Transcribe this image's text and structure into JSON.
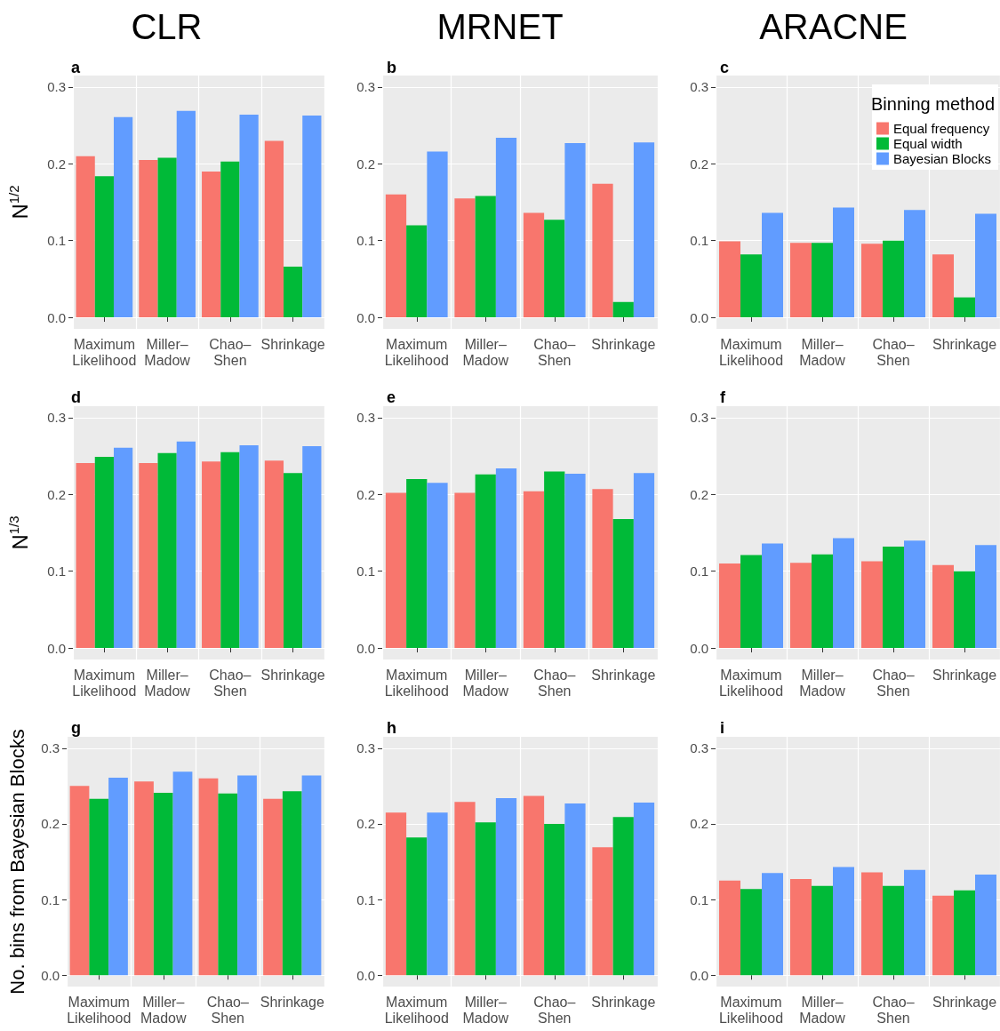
{
  "chart_data": [
    {
      "type": "bar",
      "title": "CLR",
      "subtitle": "a",
      "ylabel": "N$^{1/2}$",
      "categories": [
        "Maximum\nLikelihood",
        "Miller–\nMadow",
        "Chao–\nShen",
        "Shrinkage"
      ],
      "ylim": [
        -0.015,
        0.315
      ],
      "yticks": [
        {
          "value": 0,
          "label": "0.0"
        },
        {
          "value": 0.1,
          "label": "0.1"
        },
        {
          "value": 0.2,
          "label": "0.2"
        },
        {
          "value": 0.3,
          "label": "0.3"
        }
      ],
      "grid": true,
      "legend": false,
      "series": [
        {
          "color": "#f8766d",
          "values": [
            0.21,
            0.205,
            0.19,
            0.23
          ]
        },
        {
          "color": "#00ba38",
          "values": [
            0.184,
            0.208,
            0.203,
            0.066
          ]
        },
        {
          "color": "#619cff",
          "values": [
            0.261,
            0.269,
            0.264,
            0.263
          ]
        }
      ]
    },
    {
      "type": "bar",
      "title": "MRNET",
      "subtitle": "b",
      "categories": [
        "Maximum\nLikelihood",
        "Miller–\nMadow",
        "Chao–\nShen",
        "Shrinkage"
      ],
      "ylim": [
        -0.015,
        0.315
      ],
      "yticks": [
        {
          "value": 0,
          "label": "0.0"
        },
        {
          "value": 0.1,
          "label": "0.1"
        },
        {
          "value": 0.2,
          "label": "0.2"
        },
        {
          "value": 0.3,
          "label": "0.3"
        }
      ],
      "grid": true,
      "legend": false,
      "series": [
        {
          "color": "#f8766d",
          "values": [
            0.16,
            0.155,
            0.136,
            0.174
          ]
        },
        {
          "color": "#00ba38",
          "values": [
            0.12,
            0.158,
            0.127,
            0.02
          ]
        },
        {
          "color": "#619cff",
          "values": [
            0.216,
            0.234,
            0.227,
            0.228
          ]
        }
      ]
    },
    {
      "type": "bar",
      "title": "ARACNE",
      "subtitle": "c",
      "categories": [
        "Maximum\nLikelihood",
        "Miller–\nMadow",
        "Chao–\nShen",
        "Shrinkage"
      ],
      "ylim": [
        -0.015,
        0.315
      ],
      "yticks": [
        {
          "value": 0,
          "label": "0.0"
        },
        {
          "value": 0.1,
          "label": "0.1"
        },
        {
          "value": 0.2,
          "label": "0.2"
        },
        {
          "value": 0.3,
          "label": "0.3"
        }
      ],
      "grid": true,
      "legend": "top right",
      "legend_title": "Binning method",
      "series": [
        {
          "name": "Equal frequency",
          "color": "#f8766d",
          "values": [
            0.099,
            0.097,
            0.096,
            0.082
          ]
        },
        {
          "name": "Equal width",
          "color": "#00ba38",
          "values": [
            0.082,
            0.097,
            0.1,
            0.026
          ]
        },
        {
          "name": "Bayesian Blocks",
          "color": "#619cff",
          "values": [
            0.136,
            0.143,
            0.14,
            0.135
          ]
        }
      ]
    },
    {
      "type": "bar",
      "title": "d",
      "ylabel": "N$^{1/3}$",
      "categories": [
        "Maximum\nLikelihood",
        "Miller–\nMadow",
        "Chao–\nShen",
        "Shrinkage"
      ],
      "ylim": [
        -0.015,
        0.315
      ],
      "yticks": [
        {
          "value": 0,
          "label": "0.0"
        },
        {
          "value": 0.1,
          "label": "0.1"
        },
        {
          "value": 0.2,
          "label": "0.2"
        },
        {
          "value": 0.3,
          "label": "0.3"
        }
      ],
      "grid": true,
      "legend": false,
      "series": [
        {
          "color": "#f8766d",
          "values": [
            0.241,
            0.241,
            0.243,
            0.244
          ]
        },
        {
          "color": "#00ba38",
          "values": [
            0.249,
            0.254,
            0.255,
            0.228
          ]
        },
        {
          "color": "#619cff",
          "values": [
            0.261,
            0.269,
            0.264,
            0.263
          ]
        }
      ]
    },
    {
      "type": "bar",
      "title": "e",
      "categories": [
        "Maximum\nLikelihood",
        "Miller–\nMadow",
        "Chao–\nShen",
        "Shrinkage"
      ],
      "ylim": [
        -0.015,
        0.315
      ],
      "yticks": [
        {
          "value": 0,
          "label": "0.0"
        },
        {
          "value": 0.1,
          "label": "0.1"
        },
        {
          "value": 0.2,
          "label": "0.2"
        },
        {
          "value": 0.3,
          "label": "0.3"
        }
      ],
      "grid": true,
      "legend": false,
      "series": [
        {
          "color": "#f8766d",
          "values": [
            0.202,
            0.202,
            0.204,
            0.207
          ]
        },
        {
          "color": "#00ba38",
          "values": [
            0.22,
            0.226,
            0.23,
            0.168
          ]
        },
        {
          "color": "#619cff",
          "values": [
            0.215,
            0.234,
            0.227,
            0.228
          ]
        }
      ]
    },
    {
      "type": "bar",
      "title": "f",
      "categories": [
        "Maximum\nLikelihood",
        "Miller–\nMadow",
        "Chao–\nShen",
        "Shrinkage"
      ],
      "ylim": [
        -0.015,
        0.315
      ],
      "yticks": [
        {
          "value": 0,
          "label": "0.0"
        },
        {
          "value": 0.1,
          "label": "0.1"
        },
        {
          "value": 0.2,
          "label": "0.2"
        },
        {
          "value": 0.3,
          "label": "0.3"
        }
      ],
      "grid": true,
      "legend": false,
      "series": [
        {
          "color": "#f8766d",
          "values": [
            0.11,
            0.111,
            0.113,
            0.108
          ]
        },
        {
          "color": "#00ba38",
          "values": [
            0.121,
            0.122,
            0.132,
            0.1
          ]
        },
        {
          "color": "#619cff",
          "values": [
            0.136,
            0.143,
            0.14,
            0.134
          ]
        }
      ]
    },
    {
      "type": "bar",
      "title": "g",
      "ylabel": "No. bins from Bayesian Blocks",
      "categories": [
        "Maximum\nLikelihood",
        "Miller–\nMadow",
        "Chao–\nShen",
        "Shrinkage"
      ],
      "ylim": [
        -0.015,
        0.315
      ],
      "yticks": [
        {
          "value": 0,
          "label": "0.0"
        },
        {
          "value": 0.1,
          "label": "0.1"
        },
        {
          "value": 0.2,
          "label": "0.2"
        },
        {
          "value": 0.3,
          "label": "0.3"
        }
      ],
      "grid": true,
      "legend": false,
      "series": [
        {
          "color": "#f8766d",
          "values": [
            0.25,
            0.256,
            0.26,
            0.233
          ]
        },
        {
          "color": "#00ba38",
          "values": [
            0.233,
            0.241,
            0.24,
            0.243
          ]
        },
        {
          "color": "#619cff",
          "values": [
            0.261,
            0.269,
            0.264,
            0.264
          ]
        }
      ]
    },
    {
      "type": "bar",
      "title": "h",
      "categories": [
        "Maximum\nLikelihood",
        "Miller–\nMadow",
        "Chao–\nShen",
        "Shrinkage"
      ],
      "ylim": [
        -0.015,
        0.315
      ],
      "yticks": [
        {
          "value": 0,
          "label": "0.0"
        },
        {
          "value": 0.1,
          "label": "0.1"
        },
        {
          "value": 0.2,
          "label": "0.2"
        },
        {
          "value": 0.3,
          "label": "0.3"
        }
      ],
      "grid": true,
      "legend": false,
      "series": [
        {
          "color": "#f8766d",
          "values": [
            0.215,
            0.229,
            0.237,
            0.169
          ]
        },
        {
          "color": "#00ba38",
          "values": [
            0.182,
            0.202,
            0.2,
            0.209
          ]
        },
        {
          "color": "#619cff",
          "values": [
            0.215,
            0.234,
            0.227,
            0.228
          ]
        }
      ]
    },
    {
      "type": "bar",
      "title": "i",
      "categories": [
        "Maximum\nLikelihood",
        "Miller–\nMadow",
        "Chao–\nShen",
        "Shrinkage"
      ],
      "ylim": [
        -0.015,
        0.315
      ],
      "yticks": [
        {
          "value": 0,
          "label": "0.0"
        },
        {
          "value": 0.1,
          "label": "0.1"
        },
        {
          "value": 0.2,
          "label": "0.2"
        },
        {
          "value": 0.3,
          "label": "0.3"
        }
      ],
      "grid": true,
      "legend": false,
      "series": [
        {
          "color": "#f8766d",
          "values": [
            0.125,
            0.127,
            0.136,
            0.105
          ]
        },
        {
          "color": "#00ba38",
          "values": [
            0.114,
            0.118,
            0.118,
            0.112
          ]
        },
        {
          "color": "#619cff",
          "values": [
            0.135,
            0.143,
            0.139,
            0.133
          ]
        }
      ]
    }
  ]
}
